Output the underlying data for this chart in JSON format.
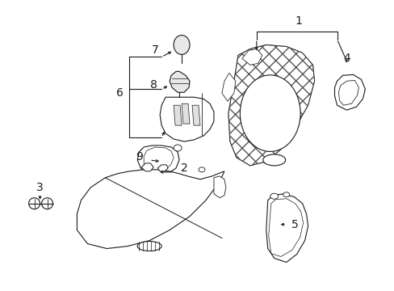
{
  "bg_color": "#ffffff",
  "line_color": "#1a1a1a",
  "dpi": 100,
  "figsize": [
    4.89,
    3.6
  ]
}
